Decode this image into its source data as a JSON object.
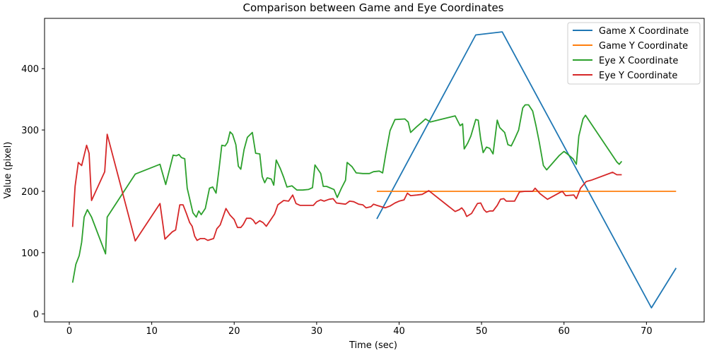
{
  "chart_data": {
    "type": "line",
    "title": "Comparison between Game and Eye Coordinates",
    "xlabel": "Time (sec)",
    "ylabel": "Value (pixel)",
    "xlim": [
      -3,
      77
    ],
    "ylim": [
      -13,
      482
    ],
    "xticks": [
      0,
      10,
      20,
      30,
      40,
      50,
      60,
      70
    ],
    "yticks": [
      0,
      100,
      200,
      300,
      400
    ],
    "legend_position": "top-right",
    "grid": false,
    "series": [
      {
        "name": "Game X Coordinate",
        "color": "#1f77b4",
        "points": [
          [
            37.3,
            155
          ],
          [
            49.3,
            455
          ],
          [
            52.5,
            460
          ],
          [
            70.6,
            10
          ],
          [
            73.6,
            75
          ]
        ]
      },
      {
        "name": "Game Y Coordinate",
        "color": "#ff7f0e",
        "points": [
          [
            37.3,
            200
          ],
          [
            73.6,
            200
          ]
        ]
      },
      {
        "name": "Eye X Coordinate",
        "color": "#2ca02c",
        "points": [
          [
            0.4,
            51
          ],
          [
            0.8,
            81
          ],
          [
            1.2,
            95
          ],
          [
            1.5,
            117
          ],
          [
            1.8,
            158
          ],
          [
            2.2,
            170
          ],
          [
            2.7,
            158
          ],
          [
            4.4,
            98
          ],
          [
            4.6,
            158
          ],
          [
            8.0,
            228
          ],
          [
            11.0,
            244
          ],
          [
            11.7,
            211
          ],
          [
            12.6,
            259
          ],
          [
            13.0,
            258
          ],
          [
            13.3,
            260
          ],
          [
            13.6,
            255
          ],
          [
            14.0,
            253
          ],
          [
            14.3,
            205
          ],
          [
            15.0,
            165
          ],
          [
            15.4,
            158
          ],
          [
            15.7,
            168
          ],
          [
            16.0,
            162
          ],
          [
            16.5,
            172
          ],
          [
            17.0,
            205
          ],
          [
            17.4,
            207
          ],
          [
            17.8,
            197
          ],
          [
            18.2,
            240
          ],
          [
            18.5,
            275
          ],
          [
            18.9,
            274
          ],
          [
            19.2,
            280
          ],
          [
            19.5,
            297
          ],
          [
            19.8,
            293
          ],
          [
            20.2,
            276
          ],
          [
            20.5,
            241
          ],
          [
            20.8,
            236
          ],
          [
            21.2,
            268
          ],
          [
            21.6,
            288
          ],
          [
            22.2,
            296
          ],
          [
            22.6,
            262
          ],
          [
            23.1,
            261
          ],
          [
            23.4,
            224
          ],
          [
            23.7,
            214
          ],
          [
            24.0,
            222
          ],
          [
            24.5,
            220
          ],
          [
            24.8,
            210
          ],
          [
            25.1,
            251
          ],
          [
            25.6,
            237
          ],
          [
            26.0,
            223
          ],
          [
            26.4,
            207
          ],
          [
            27.0,
            209
          ],
          [
            27.6,
            202
          ],
          [
            28.3,
            202
          ],
          [
            29.0,
            203
          ],
          [
            29.5,
            206
          ],
          [
            29.8,
            243
          ],
          [
            30.5,
            229
          ],
          [
            30.8,
            208
          ],
          [
            31.2,
            208
          ],
          [
            32.1,
            203
          ],
          [
            32.5,
            190
          ],
          [
            33.0,
            205
          ],
          [
            33.5,
            218
          ],
          [
            33.7,
            247
          ],
          [
            34.3,
            240
          ],
          [
            34.8,
            230
          ],
          [
            35.6,
            229
          ],
          [
            36.4,
            229
          ],
          [
            36.9,
            232
          ],
          [
            37.6,
            233
          ],
          [
            38.0,
            230
          ],
          [
            38.4,
            262
          ],
          [
            38.9,
            299
          ],
          [
            39.5,
            317
          ],
          [
            40.7,
            318
          ],
          [
            41.1,
            313
          ],
          [
            41.4,
            296
          ],
          [
            42.1,
            305
          ],
          [
            42.8,
            313
          ],
          [
            43.2,
            318
          ],
          [
            43.8,
            313
          ],
          [
            46.8,
            323
          ],
          [
            47.4,
            307
          ],
          [
            47.7,
            310
          ],
          [
            47.9,
            269
          ],
          [
            48.3,
            278
          ],
          [
            48.7,
            290
          ],
          [
            49.3,
            317
          ],
          [
            49.6,
            316
          ],
          [
            49.9,
            285
          ],
          [
            50.2,
            263
          ],
          [
            50.6,
            272
          ],
          [
            51.0,
            270
          ],
          [
            51.4,
            261
          ],
          [
            51.9,
            316
          ],
          [
            52.2,
            304
          ],
          [
            52.8,
            296
          ],
          [
            53.2,
            276
          ],
          [
            53.6,
            274
          ],
          [
            54.0,
            285
          ],
          [
            54.5,
            300
          ],
          [
            55.0,
            336
          ],
          [
            55.3,
            341
          ],
          [
            55.7,
            341
          ],
          [
            56.2,
            331
          ],
          [
            56.6,
            307
          ],
          [
            57.0,
            280
          ],
          [
            57.5,
            242
          ],
          [
            57.9,
            235
          ],
          [
            59.4,
            258
          ],
          [
            60.0,
            265
          ],
          [
            60.4,
            261
          ],
          [
            61.1,
            253
          ],
          [
            61.5,
            244
          ],
          [
            61.8,
            290
          ],
          [
            62.3,
            318
          ],
          [
            62.6,
            324
          ],
          [
            66.4,
            248
          ],
          [
            66.7,
            244
          ],
          [
            67.0,
            249
          ]
        ]
      },
      {
        "name": "Eye Y Coordinate",
        "color": "#d62728",
        "points": [
          [
            0.4,
            142
          ],
          [
            0.7,
            208
          ],
          [
            1.1,
            247
          ],
          [
            1.5,
            242
          ],
          [
            2.1,
            275
          ],
          [
            2.4,
            262
          ],
          [
            2.7,
            185
          ],
          [
            4.3,
            232
          ],
          [
            4.6,
            293
          ],
          [
            8.0,
            119
          ],
          [
            11.0,
            180
          ],
          [
            11.6,
            122
          ],
          [
            12.5,
            134
          ],
          [
            12.9,
            137
          ],
          [
            13.4,
            178
          ],
          [
            13.8,
            178
          ],
          [
            14.2,
            164
          ],
          [
            14.6,
            149
          ],
          [
            14.9,
            143
          ],
          [
            15.2,
            127
          ],
          [
            15.5,
            120
          ],
          [
            15.9,
            123
          ],
          [
            16.4,
            123
          ],
          [
            16.8,
            120
          ],
          [
            17.5,
            123
          ],
          [
            17.9,
            139
          ],
          [
            18.3,
            145
          ],
          [
            19.0,
            172
          ],
          [
            19.5,
            161
          ],
          [
            20.0,
            154
          ],
          [
            20.4,
            141
          ],
          [
            20.8,
            141
          ],
          [
            21.1,
            146
          ],
          [
            21.5,
            156
          ],
          [
            22.0,
            156
          ],
          [
            22.3,
            153
          ],
          [
            22.6,
            147
          ],
          [
            23.1,
            152
          ],
          [
            23.5,
            149
          ],
          [
            23.9,
            143
          ],
          [
            24.3,
            151
          ],
          [
            24.9,
            163
          ],
          [
            25.3,
            178
          ],
          [
            26.0,
            185
          ],
          [
            26.6,
            184
          ],
          [
            27.1,
            194
          ],
          [
            27.5,
            180
          ],
          [
            28.0,
            177
          ],
          [
            29.6,
            177
          ],
          [
            30.0,
            183
          ],
          [
            30.5,
            186
          ],
          [
            30.9,
            184
          ],
          [
            31.5,
            187
          ],
          [
            32.0,
            188
          ],
          [
            32.4,
            181
          ],
          [
            32.9,
            180
          ],
          [
            33.5,
            179
          ],
          [
            34.0,
            184
          ],
          [
            34.5,
            183
          ],
          [
            35.1,
            179
          ],
          [
            35.6,
            178
          ],
          [
            36.0,
            173
          ],
          [
            36.6,
            175
          ],
          [
            36.9,
            179
          ],
          [
            37.3,
            177
          ],
          [
            38.3,
            173
          ],
          [
            38.9,
            176
          ],
          [
            39.5,
            181
          ],
          [
            40.0,
            184
          ],
          [
            40.6,
            186
          ],
          [
            41.0,
            197
          ],
          [
            41.4,
            193
          ],
          [
            42.2,
            194
          ],
          [
            42.8,
            195
          ],
          [
            43.6,
            201
          ],
          [
            46.8,
            167
          ],
          [
            47.3,
            170
          ],
          [
            47.6,
            173
          ],
          [
            47.9,
            168
          ],
          [
            48.2,
            159
          ],
          [
            48.8,
            164
          ],
          [
            49.1,
            171
          ],
          [
            49.5,
            180
          ],
          [
            49.9,
            181
          ],
          [
            50.3,
            170
          ],
          [
            50.6,
            166
          ],
          [
            51.0,
            168
          ],
          [
            51.4,
            168
          ],
          [
            51.9,
            177
          ],
          [
            52.3,
            187
          ],
          [
            52.7,
            188
          ],
          [
            53.0,
            184
          ],
          [
            54.0,
            184
          ],
          [
            54.6,
            199
          ],
          [
            55.3,
            200
          ],
          [
            56.2,
            200
          ],
          [
            56.5,
            205
          ],
          [
            57.1,
            196
          ],
          [
            57.6,
            191
          ],
          [
            58.0,
            187
          ],
          [
            59.5,
            198
          ],
          [
            59.8,
            200
          ],
          [
            60.2,
            193
          ],
          [
            61.2,
            194
          ],
          [
            61.5,
            188
          ],
          [
            62.0,
            205
          ],
          [
            62.7,
            216
          ],
          [
            63.3,
            218
          ],
          [
            65.9,
            231
          ],
          [
            66.4,
            227
          ],
          [
            67.0,
            227
          ]
        ]
      }
    ]
  }
}
